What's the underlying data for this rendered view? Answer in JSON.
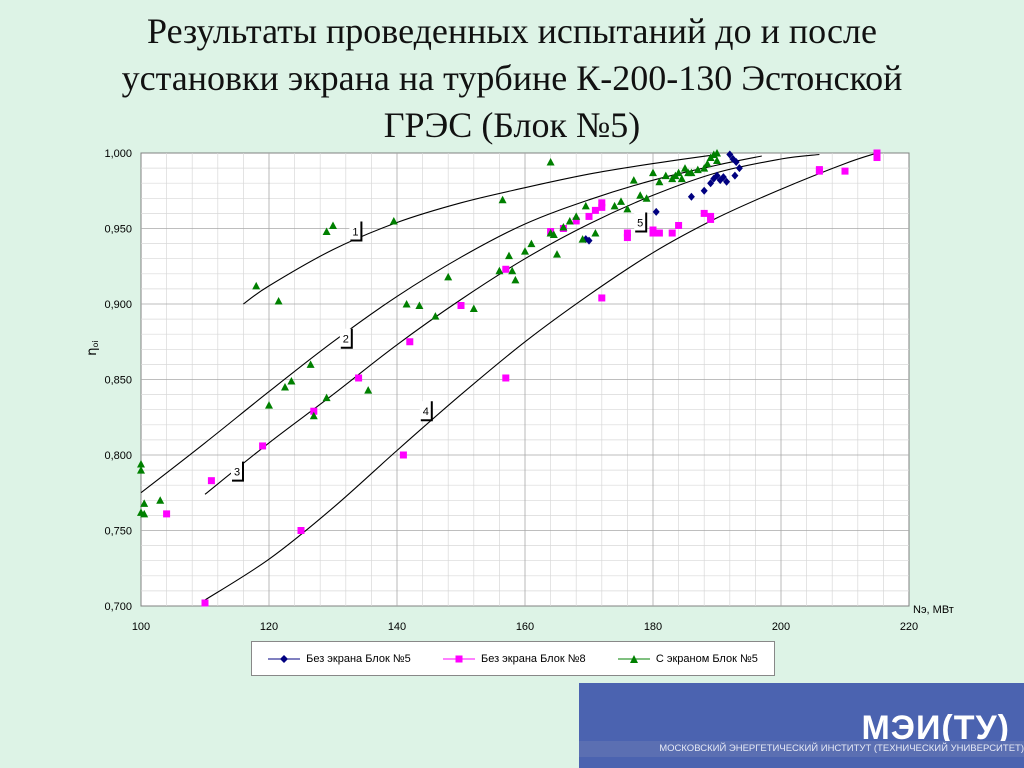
{
  "slide": {
    "title": "Результаты проведенных испытаний до и после\nустановки экрана на турбине К-200-130 Эстонской\nГРЭС (Блок №5)"
  },
  "footer": {
    "logo": "МЭИ(ТУ)",
    "institute": "МОСКОВСКИЙ ЭНЕРГЕТИЧЕСКИЙ ИНСТИТУТ (ТЕХНИЧЕСКИЙ УНИВЕРСИТЕТ)",
    "banner_color": "#4b63b0"
  },
  "chart_data": {
    "type": "scatter",
    "xlabel": "Nэ, МВт",
    "ylabel": "η",
    "ylabel_subscript": "oi",
    "xlim": [
      100,
      220
    ],
    "ylim": [
      0.7,
      1.0
    ],
    "xticks": [
      "100",
      "120",
      "140",
      "160",
      "180",
      "200",
      "220"
    ],
    "yticks": [
      "0,700",
      "0,750",
      "0,800",
      "0,850",
      "0,900",
      "0,950",
      "1,000"
    ],
    "grid": true,
    "legend_position": "bottom",
    "series": [
      {
        "name": "Без экрана Блок №5",
        "color": "#000080",
        "marker": "diamond",
        "points": [
          [
            169.5,
            0.943
          ],
          [
            170,
            0.942
          ],
          [
            180.5,
            0.961
          ],
          [
            186,
            0.971
          ],
          [
            188,
            0.975
          ],
          [
            189,
            0.98
          ],
          [
            189.5,
            0.983
          ],
          [
            190,
            0.985
          ],
          [
            190.5,
            0.982
          ],
          [
            191,
            0.984
          ],
          [
            191.5,
            0.981
          ],
          [
            192,
            0.999
          ],
          [
            192.5,
            0.996
          ],
          [
            193,
            0.994
          ],
          [
            193.5,
            0.99
          ],
          [
            192.8,
            0.985
          ]
        ]
      },
      {
        "name": "Без экрана Блок №8",
        "color": "#ff00ff",
        "marker": "square",
        "points": [
          [
            104,
            0.761
          ],
          [
            111,
            0.783
          ],
          [
            110,
            0.702
          ],
          [
            119,
            0.806
          ],
          [
            125,
            0.75
          ],
          [
            127,
            0.829
          ],
          [
            134,
            0.851
          ],
          [
            141,
            0.8
          ],
          [
            142,
            0.875
          ],
          [
            150,
            0.899
          ],
          [
            157,
            0.851
          ],
          [
            157,
            0.923
          ],
          [
            164,
            0.948
          ],
          [
            166,
            0.95
          ],
          [
            168,
            0.955
          ],
          [
            170,
            0.958
          ],
          [
            171,
            0.962
          ],
          [
            172,
            0.964
          ],
          [
            172,
            0.967
          ],
          [
            172,
            0.904
          ],
          [
            176,
            0.944
          ],
          [
            176,
            0.947
          ],
          [
            180,
            0.947
          ],
          [
            180,
            0.949
          ],
          [
            181,
            0.947
          ],
          [
            183,
            0.947
          ],
          [
            184,
            0.952
          ],
          [
            188,
            0.96
          ],
          [
            189,
            0.956
          ],
          [
            189,
            0.958
          ],
          [
            206,
            0.988
          ],
          [
            206,
            0.989
          ],
          [
            210,
            0.988
          ],
          [
            215,
            0.997
          ],
          [
            215,
            1.0
          ]
        ]
      },
      {
        "name": "С экраном Блок №5",
        "color": "#008000",
        "marker": "triangle",
        "points": [
          [
            100,
            0.79
          ],
          [
            100,
            0.794
          ],
          [
            100,
            0.762
          ],
          [
            100.5,
            0.761
          ],
          [
            100.5,
            0.768
          ],
          [
            103,
            0.77
          ],
          [
            118,
            0.912
          ],
          [
            120,
            0.833
          ],
          [
            121.5,
            0.902
          ],
          [
            122.5,
            0.845
          ],
          [
            123.5,
            0.849
          ],
          [
            126.5,
            0.86
          ],
          [
            127,
            0.826
          ],
          [
            129,
            0.838
          ],
          [
            129,
            0.948
          ],
          [
            130,
            0.952
          ],
          [
            135.5,
            0.843
          ],
          [
            139.5,
            0.955
          ],
          [
            141.5,
            0.9
          ],
          [
            143.5,
            0.899
          ],
          [
            146,
            0.892
          ],
          [
            148,
            0.918
          ],
          [
            152,
            0.897
          ],
          [
            156,
            0.922
          ],
          [
            156.5,
            0.969
          ],
          [
            157.5,
            0.932
          ],
          [
            158,
            0.922
          ],
          [
            158.5,
            0.916
          ],
          [
            160,
            0.935
          ],
          [
            161,
            0.94
          ],
          [
            164,
            0.947
          ],
          [
            164.5,
            0.946
          ],
          [
            165,
            0.933
          ],
          [
            164,
            0.994
          ],
          [
            166,
            0.951
          ],
          [
            167,
            0.955
          ],
          [
            168,
            0.958
          ],
          [
            169,
            0.943
          ],
          [
            169.5,
            0.965
          ],
          [
            171,
            0.947
          ],
          [
            174,
            0.965
          ],
          [
            175,
            0.968
          ],
          [
            176,
            0.963
          ],
          [
            177,
            0.982
          ],
          [
            178,
            0.972
          ],
          [
            179,
            0.97
          ],
          [
            180,
            0.987
          ],
          [
            181,
            0.981
          ],
          [
            182,
            0.985
          ],
          [
            183,
            0.983
          ],
          [
            183.5,
            0.985
          ],
          [
            184,
            0.987
          ],
          [
            184.5,
            0.983
          ],
          [
            185,
            0.99
          ],
          [
            185.5,
            0.987
          ],
          [
            186,
            0.987
          ],
          [
            187,
            0.989
          ],
          [
            188,
            0.99
          ],
          [
            188.5,
            0.993
          ],
          [
            189,
            0.997
          ],
          [
            189.5,
            0.999
          ],
          [
            190,
            1.0
          ],
          [
            190,
            0.995
          ]
        ]
      }
    ],
    "curves": [
      {
        "label": "1",
        "points": [
          [
            116,
            0.9
          ],
          [
            120,
            0.912
          ],
          [
            130,
            0.936
          ],
          [
            140,
            0.954
          ],
          [
            150,
            0.967
          ],
          [
            160,
            0.977
          ],
          [
            170,
            0.986
          ],
          [
            180,
            0.993
          ],
          [
            190,
            0.999
          ]
        ]
      },
      {
        "label": "2",
        "points": [
          [
            100,
            0.775
          ],
          [
            110,
            0.808
          ],
          [
            120,
            0.842
          ],
          [
            130,
            0.875
          ],
          [
            140,
            0.905
          ],
          [
            150,
            0.931
          ],
          [
            160,
            0.953
          ],
          [
            170,
            0.969
          ],
          [
            180,
            0.982
          ],
          [
            190,
            0.992
          ],
          [
            197,
            0.998
          ]
        ]
      },
      {
        "label": "3",
        "points": [
          [
            110,
            0.774
          ],
          [
            120,
            0.808
          ],
          [
            130,
            0.84
          ],
          [
            140,
            0.873
          ],
          [
            150,
            0.903
          ],
          [
            160,
            0.93
          ],
          [
            170,
            0.953
          ],
          [
            180,
            0.972
          ],
          [
            190,
            0.987
          ],
          [
            200,
            0.996
          ],
          [
            206,
            0.999
          ]
        ]
      },
      {
        "label": "4",
        "points": [
          [
            110,
            0.704
          ],
          [
            120,
            0.731
          ],
          [
            130,
            0.765
          ],
          [
            140,
            0.803
          ],
          [
            150,
            0.84
          ],
          [
            160,
            0.875
          ],
          [
            170,
            0.906
          ],
          [
            180,
            0.934
          ],
          [
            190,
            0.957
          ],
          [
            200,
            0.976
          ],
          [
            210,
            0.993
          ],
          [
            215,
            1.0
          ]
        ]
      }
    ],
    "curve_labels": [
      {
        "text": "1",
        "x": 133.5,
        "y": 0.948
      },
      {
        "text": "2",
        "x": 132,
        "y": 0.877
      },
      {
        "text": "3",
        "x": 115,
        "y": 0.789
      },
      {
        "text": "4",
        "x": 144.5,
        "y": 0.829
      },
      {
        "text": "5",
        "x": 178,
        "y": 0.954
      }
    ]
  }
}
